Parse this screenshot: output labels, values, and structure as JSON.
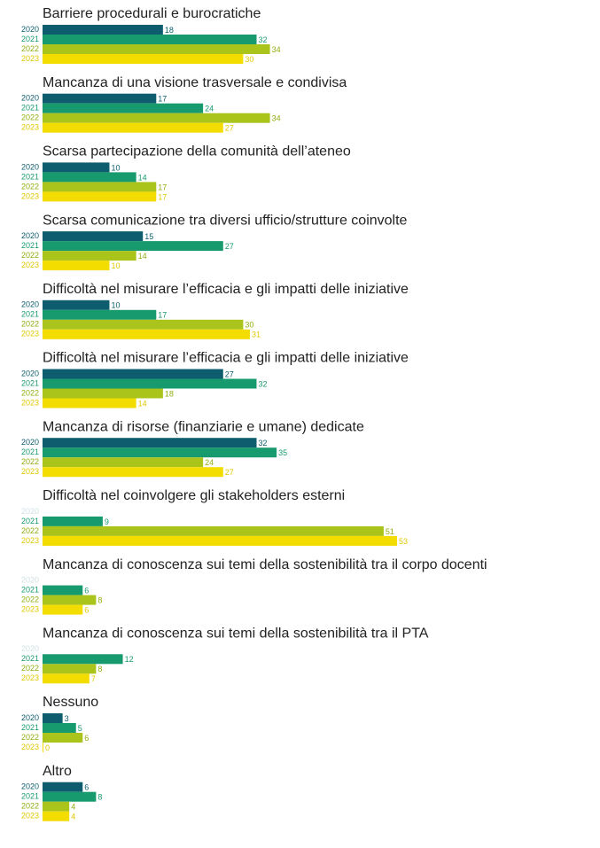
{
  "chart_data": {
    "type": "bar",
    "orientation": "horizontal",
    "categories": [
      "Barriere procedurali e burocratiche",
      "Mancanza di una visione trasversale e condivisa",
      "Scarsa partecipazione della comunità dell’ateneo",
      "Scarsa comunicazione tra diversi ufficio/strutture coinvolte",
      "Difficoltà nel misurare l’efficacia e gli impatti delle iniziative",
      "Difficoltà nel misurare l’efficacia e gli impatti delle iniziative",
      "Mancanza di risorse (finanziarie e umane) dedicate",
      "Difficoltà nel coinvolgere gli stakeholders esterni",
      "Mancanza di conoscenza sui temi della sostenibilità tra il corpo docenti",
      "Mancanza di conoscenza sui temi della sostenibilità tra il PTA",
      "Nessuno",
      "Altro"
    ],
    "series": [
      {
        "name": "2020",
        "color": "#0d5d6e",
        "values": [
          18,
          17,
          10,
          15,
          10,
          27,
          32,
          null,
          null,
          null,
          3,
          6
        ]
      },
      {
        "name": "2021",
        "color": "#179a6d",
        "values": [
          32,
          24,
          14,
          27,
          17,
          32,
          35,
          9,
          6,
          12,
          5,
          8
        ]
      },
      {
        "name": "2022",
        "color": "#aac41c",
        "values": [
          34,
          34,
          17,
          14,
          30,
          18,
          24,
          51,
          8,
          8,
          6,
          4
        ]
      },
      {
        "name": "2023",
        "color": "#f3dc00",
        "values": [
          30,
          27,
          17,
          10,
          31,
          14,
          27,
          53,
          6,
          7,
          0,
          4
        ]
      }
    ]
  }
}
